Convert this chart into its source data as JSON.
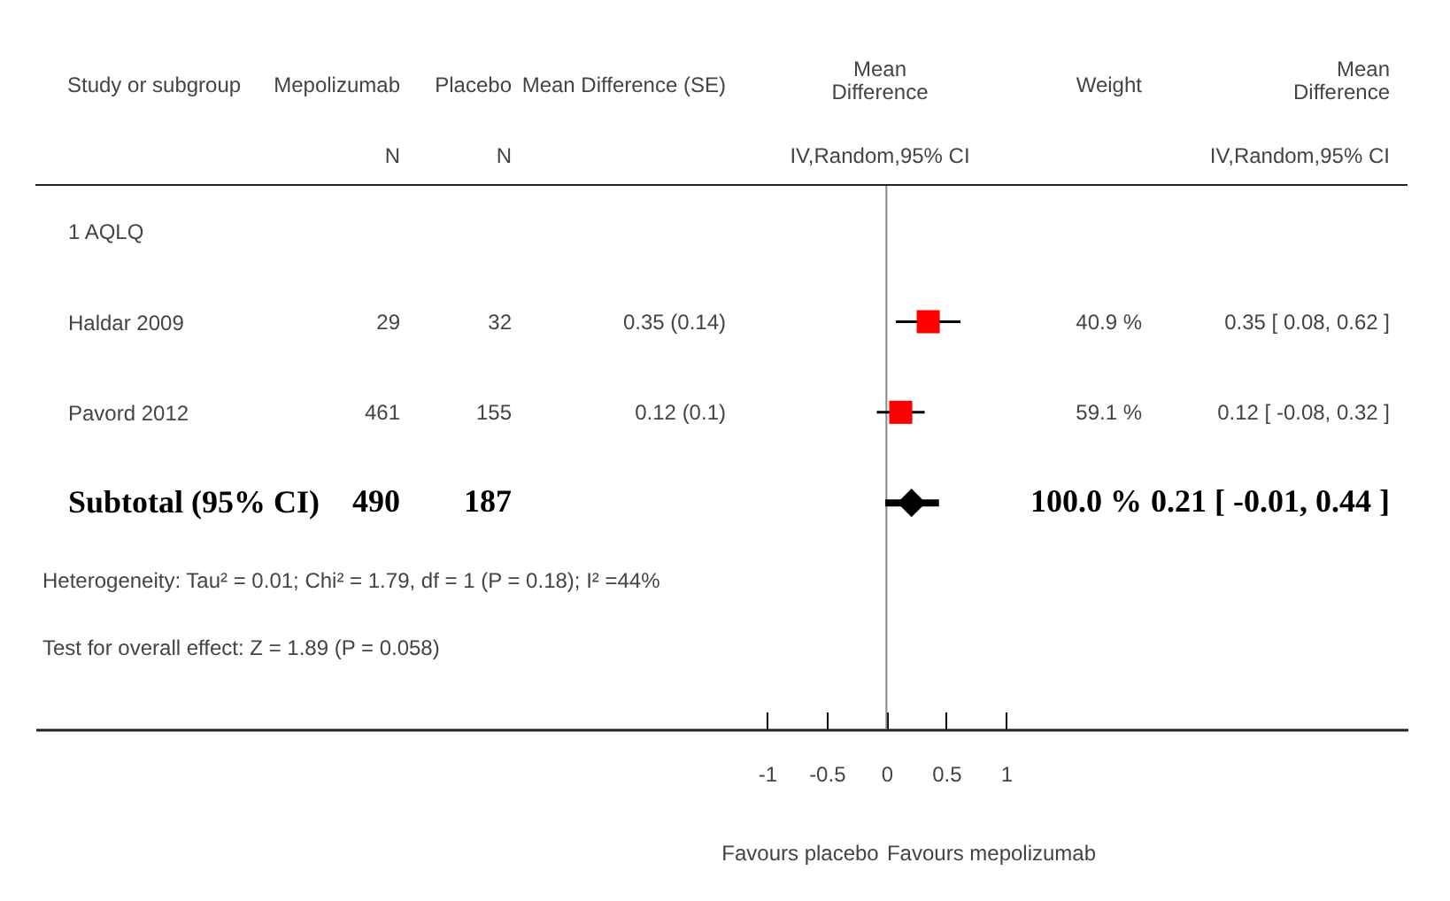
{
  "chart_data": {
    "type": "scatter",
    "orientation": "horizontal",
    "categories": [
      "1 AQLQ",
      "Haldar 2009",
      "Pavord 2012",
      "Subtotal (95% CI)",
      null,
      null
    ],
    "series": [
      {
        "type": "scatter",
        "marker": "square",
        "color": "#ff0000",
        "values": [
          null,
          0.35,
          0.12,
          null,
          null,
          null
        ],
        "errors": [
          null,
          [
            0.08,
            0.62
          ],
          [
            -0.08,
            0.32
          ],
          null,
          null,
          null
        ]
      },
      {
        "type": "scatter",
        "marker": "diamond",
        "color": "#000000",
        "values": [
          null,
          null,
          null,
          0.21,
          null,
          null
        ],
        "errors": [
          null,
          null,
          null,
          [
            -0.01,
            0.44
          ],
          null,
          null
        ]
      }
    ],
    "xlim": [
      -7.12,
      4.36
    ],
    "xticks": [
      -1,
      -0.5,
      0,
      0.5,
      1
    ],
    "grid": false,
    "ref_lines": [
      {
        "axis": "x",
        "value": 0,
        "color": "#888888"
      }
    ],
    "annotations": [
      "Study or subgroup",
      "Mepolizumab",
      "Placebo",
      "Mean Difference (SE)",
      "Mean Difference",
      "Weight",
      "Mean Difference",
      "N",
      "N",
      "IV,Random,95% CI",
      "IV,Random,95% CI",
      "29",
      "32",
      "0.35 (0.14)",
      "40.9 %",
      "0.35 [ 0.08, 0.62 ]",
      "461",
      "155",
      "0.12 (0.1)",
      "59.1 %",
      "0.12 [ -0.08, 0.32 ]",
      "490",
      "187",
      "100.0 %",
      "0.21 [ -0.01, 0.44 ]",
      "Heterogeneity: Tau² = 0.01; Chi² = 1.79, df = 1 (P = 0.18); I² =44%",
      "Test for overall effect: Z = 1.89 (P = 0.058)",
      "Favours placebo",
      "Favours mepolizumab"
    ]
  }
}
